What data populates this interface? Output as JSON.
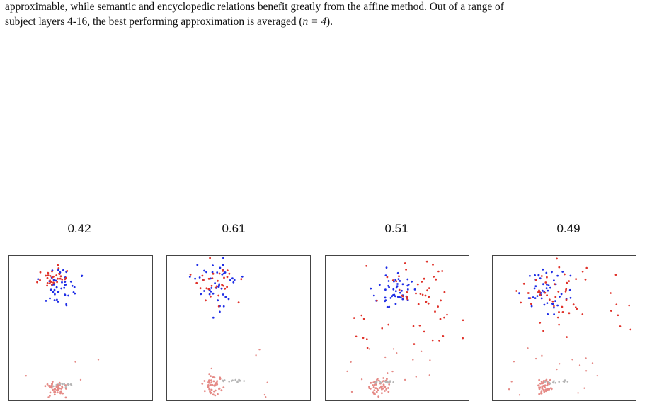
{
  "caption": {
    "line1": "approximable, while semantic and encyclopedic relations benefit greatly from the affine method. Out of a range of",
    "line2_pre": "subject layers 4-16, the best performing approximation is averaged (",
    "line2_math": "n = 4",
    "line2_post": ")."
  },
  "panels": [
    {
      "title": "0.42"
    },
    {
      "title": "0.61"
    },
    {
      "title": "0.51"
    },
    {
      "title": "0.49"
    }
  ],
  "colors": {
    "blue": "#1f2ee6",
    "red": "#e0322a",
    "pink": "#e58a86",
    "gray": "#b5b5b5"
  }
}
